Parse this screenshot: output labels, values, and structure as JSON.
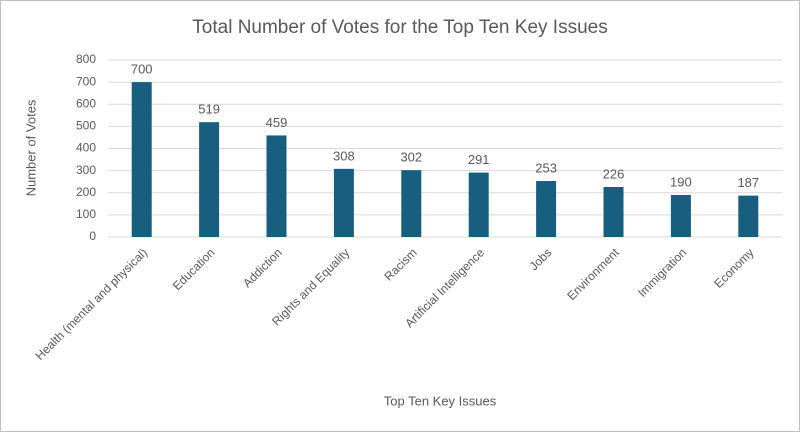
{
  "chart_data": {
    "type": "bar",
    "title": "Total Number of Votes for the Top Ten Key Issues",
    "x_label": "Top Ten Key Issues",
    "y_label": "Number of Votes",
    "categories": [
      "Health (mental and physical)",
      "Education",
      "Addiction",
      "Rights and Equality",
      "Racism",
      "Artificial Intelligence",
      "Jobs",
      "Environment",
      "Immigration",
      "Economy"
    ],
    "values": [
      700,
      519,
      459,
      308,
      302,
      291,
      253,
      226,
      190,
      187
    ],
    "color": "#175e7f",
    "ylim": [
      0,
      800
    ],
    "yticks": [
      0,
      100,
      200,
      300,
      400,
      500,
      600,
      700,
      800
    ],
    "grid": true,
    "data_labels": true
  }
}
